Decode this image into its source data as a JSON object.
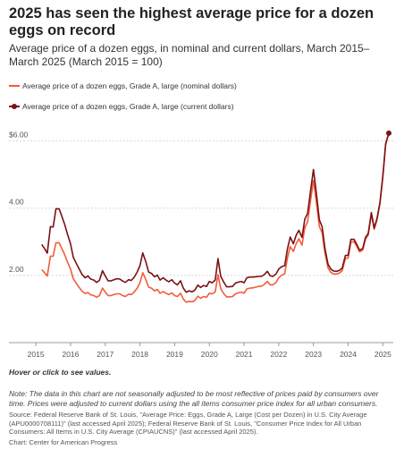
{
  "header": {
    "title": "2025 has seen the highest average price for a dozen eggs on record",
    "subtitle": "Average price of a dozen eggs, in nominal and current dollars, March 2015–March 2025 (March 2015 = 100)"
  },
  "footer": {
    "hover_note": "Hover or click to see values.",
    "note": "Note: The data in this chart are not seasonally adjusted to be most reflective of prices paid by consumers over time. Prices were adjusted to current dollars using the all items consumer price index for all urban consumers.",
    "source": "Source: Federal Reserve Bank of St. Louis, \"Average Price: Eggs, Grade A, Large (Cost per Dozen) in U.S. City Average (APU0000708111)\" (last accessed April 2025); Federal Reserve Bank of St. Louis, \"Consumer Price Index for All Urban Consumers: All Items in U.S. City Average (CPIAUCNS)\" (last accessed April 2025).",
    "credit": "Chart: Center for American Progress"
  },
  "chart_data": {
    "type": "line",
    "title": "2025 has seen the highest average price for a dozen eggs on record",
    "xlim": [
      2015.1,
      2025.3
    ],
    "ylim": [
      0,
      6.6
    ],
    "x_ticks": [
      2015,
      2016,
      2017,
      2018,
      2019,
      2020,
      2021,
      2022,
      2023,
      2024,
      2025
    ],
    "y_ticks": [
      {
        "value": 2,
        "label": "2.00"
      },
      {
        "value": 4,
        "label": "4.00"
      },
      {
        "value": 6,
        "label": "$6.00"
      }
    ],
    "grid": true,
    "legend_position": "top-left",
    "series": [
      {
        "name": "Average price of a dozen eggs, Grade A, large (nominal dollars)",
        "color": "#f25c3b",
        "x": [
          2015.17,
          2015.25,
          2015.33,
          2015.42,
          2015.5,
          2015.58,
          2015.67,
          2015.75,
          2015.83,
          2015.92,
          2016.0,
          2016.08,
          2016.17,
          2016.25,
          2016.33,
          2016.42,
          2016.5,
          2016.58,
          2016.67,
          2016.75,
          2016.83,
          2016.92,
          2017.0,
          2017.08,
          2017.17,
          2017.25,
          2017.33,
          2017.42,
          2017.5,
          2017.58,
          2017.67,
          2017.75,
          2017.83,
          2017.92,
          2018.0,
          2018.08,
          2018.17,
          2018.25,
          2018.33,
          2018.42,
          2018.5,
          2018.58,
          2018.67,
          2018.75,
          2018.83,
          2018.92,
          2019.0,
          2019.08,
          2019.17,
          2019.25,
          2019.33,
          2019.42,
          2019.5,
          2019.58,
          2019.67,
          2019.75,
          2019.83,
          2019.92,
          2020.0,
          2020.08,
          2020.17,
          2020.25,
          2020.33,
          2020.42,
          2020.5,
          2020.58,
          2020.67,
          2020.75,
          2020.83,
          2020.92,
          2021.0,
          2021.08,
          2021.17,
          2021.25,
          2021.33,
          2021.42,
          2021.5,
          2021.58,
          2021.67,
          2021.75,
          2021.83,
          2021.92,
          2022.0,
          2022.08,
          2022.17,
          2022.25,
          2022.33,
          2022.42,
          2022.5,
          2022.58,
          2022.67,
          2022.75,
          2022.83,
          2022.92,
          2023.0,
          2023.08,
          2023.17,
          2023.25,
          2023.33,
          2023.42,
          2023.5,
          2023.58,
          2023.67,
          2023.75,
          2023.83,
          2023.92,
          2024.0,
          2024.08,
          2024.17,
          2024.25,
          2024.33,
          2024.42,
          2024.5,
          2024.58,
          2024.67,
          2024.75,
          2024.83,
          2024.92,
          2025.0,
          2025.08,
          2025.17
        ],
        "values": [
          2.17,
          2.08,
          1.98,
          2.57,
          2.57,
          2.97,
          2.97,
          2.8,
          2.62,
          2.38,
          2.19,
          1.9,
          1.76,
          1.64,
          1.53,
          1.46,
          1.49,
          1.42,
          1.4,
          1.35,
          1.4,
          1.62,
          1.5,
          1.4,
          1.4,
          1.43,
          1.45,
          1.45,
          1.4,
          1.37,
          1.44,
          1.43,
          1.5,
          1.62,
          1.78,
          2.08,
          1.87,
          1.65,
          1.62,
          1.54,
          1.58,
          1.47,
          1.52,
          1.47,
          1.43,
          1.48,
          1.4,
          1.37,
          1.47,
          1.3,
          1.2,
          1.23,
          1.21,
          1.25,
          1.38,
          1.32,
          1.37,
          1.35,
          1.47,
          1.45,
          1.51,
          2.02,
          1.6,
          1.45,
          1.36,
          1.36,
          1.37,
          1.45,
          1.48,
          1.5,
          1.47,
          1.6,
          1.62,
          1.63,
          1.65,
          1.67,
          1.68,
          1.73,
          1.82,
          1.72,
          1.72,
          1.79,
          1.93,
          2.0,
          2.05,
          2.52,
          2.86,
          2.71,
          2.94,
          3.09,
          2.9,
          3.42,
          3.59,
          4.25,
          4.82,
          4.21,
          3.45,
          3.27,
          2.67,
          2.22,
          2.09,
          2.04,
          2.04,
          2.07,
          2.14,
          2.5,
          2.52,
          2.99,
          3.0,
          2.86,
          2.7,
          2.75,
          3.08,
          3.2,
          3.82,
          3.37,
          3.65,
          4.15,
          4.95,
          5.9,
          6.23
        ]
      },
      {
        "name": "Average price of a dozen eggs, Grade A, large (current dollars)",
        "color": "#7b1113",
        "x": [
          2015.17,
          2015.25,
          2015.33,
          2015.42,
          2015.5,
          2015.58,
          2015.67,
          2015.75,
          2015.83,
          2015.92,
          2016.0,
          2016.08,
          2016.17,
          2016.25,
          2016.33,
          2016.42,
          2016.5,
          2016.58,
          2016.67,
          2016.75,
          2016.83,
          2016.92,
          2017.0,
          2017.08,
          2017.17,
          2017.25,
          2017.33,
          2017.42,
          2017.5,
          2017.58,
          2017.67,
          2017.75,
          2017.83,
          2017.92,
          2018.0,
          2018.08,
          2018.17,
          2018.25,
          2018.33,
          2018.42,
          2018.5,
          2018.58,
          2018.67,
          2018.75,
          2018.83,
          2018.92,
          2019.0,
          2019.08,
          2019.17,
          2019.25,
          2019.33,
          2019.42,
          2019.5,
          2019.58,
          2019.67,
          2019.75,
          2019.83,
          2019.92,
          2020.0,
          2020.08,
          2020.17,
          2020.25,
          2020.33,
          2020.42,
          2020.5,
          2020.58,
          2020.67,
          2020.75,
          2020.83,
          2020.92,
          2021.0,
          2021.08,
          2021.17,
          2021.25,
          2021.33,
          2021.42,
          2021.5,
          2021.58,
          2021.67,
          2021.75,
          2021.83,
          2021.92,
          2022.0,
          2022.08,
          2022.17,
          2022.25,
          2022.33,
          2022.42,
          2022.5,
          2022.58,
          2022.67,
          2022.75,
          2022.83,
          2022.92,
          2023.0,
          2023.08,
          2023.17,
          2023.25,
          2023.33,
          2023.42,
          2023.5,
          2023.58,
          2023.67,
          2023.75,
          2023.83,
          2023.92,
          2024.0,
          2024.08,
          2024.17,
          2024.25,
          2024.33,
          2024.42,
          2024.5,
          2024.58,
          2024.67,
          2024.75,
          2024.83,
          2024.92,
          2025.0,
          2025.08,
          2025.17
        ],
        "values": [
          2.92,
          2.8,
          2.66,
          3.45,
          3.44,
          3.98,
          3.98,
          3.76,
          3.52,
          3.2,
          2.94,
          2.54,
          2.35,
          2.19,
          2.03,
          1.93,
          1.98,
          1.89,
          1.86,
          1.79,
          1.85,
          2.14,
          1.98,
          1.84,
          1.84,
          1.87,
          1.9,
          1.89,
          1.83,
          1.79,
          1.87,
          1.85,
          1.94,
          2.1,
          2.29,
          2.67,
          2.4,
          2.1,
          2.06,
          1.96,
          2.01,
          1.86,
          1.93,
          1.86,
          1.81,
          1.87,
          1.77,
          1.72,
          1.84,
          1.62,
          1.5,
          1.54,
          1.51,
          1.56,
          1.71,
          1.64,
          1.7,
          1.67,
          1.82,
          1.78,
          1.86,
          2.5,
          1.97,
          1.79,
          1.66,
          1.66,
          1.67,
          1.77,
          1.8,
          1.82,
          1.78,
          1.93,
          1.95,
          1.95,
          1.96,
          1.97,
          1.97,
          2.02,
          2.12,
          1.99,
          1.97,
          2.04,
          2.19,
          2.26,
          2.29,
          2.79,
          3.14,
          2.94,
          3.19,
          3.34,
          3.13,
          3.67,
          3.84,
          4.54,
          5.15,
          4.48,
          3.65,
          3.45,
          2.81,
          2.33,
          2.19,
          2.13,
          2.12,
          2.15,
          2.22,
          2.59,
          2.6,
          3.07,
          3.07,
          2.92,
          2.75,
          2.8,
          3.13,
          3.25,
          3.87,
          3.41,
          3.69,
          4.19,
          4.98,
          5.92,
          6.23
        ]
      }
    ]
  }
}
